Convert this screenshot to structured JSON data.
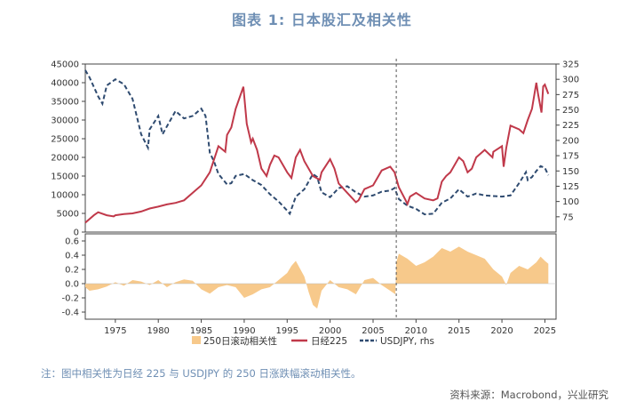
{
  "title": "图表 1:  日本股汇及相关性",
  "note": "注：图中相关性为日经 225 与 USDJPY 的 250 日涨跌幅滚动相关性。",
  "source": "资料来源：Macrobond，兴业研究",
  "colors": {
    "nikkei": "#c0394a",
    "usdjpy": "#2f4b70",
    "corr": "#f7c98b",
    "title": "#6f8fb4"
  },
  "chart_data": {
    "type": "line",
    "x_ticks": [
      1975,
      1980,
      1985,
      1990,
      1995,
      2000,
      2005,
      2010,
      2015,
      2020,
      2025
    ],
    "xlim": [
      1971.5,
      2026.3
    ],
    "marker_line_x": 2007.7,
    "top_panel": {
      "ylim_left": [
        0,
        45000
      ],
      "left_ticks": [
        0,
        5000,
        10000,
        15000,
        20000,
        25000,
        30000,
        35000,
        40000,
        45000
      ],
      "ylim_right": [
        50,
        325
      ],
      "right_ticks": [
        75,
        100,
        125,
        150,
        175,
        200,
        225,
        250,
        275,
        300,
        325
      ],
      "series": [
        {
          "name": "日经225",
          "axis": "left",
          "x": [
            1971.5,
            1972.5,
            1973,
            1974,
            1974.8,
            1975,
            1976,
            1977,
            1978,
            1979,
            1980,
            1981,
            1982,
            1983,
            1984,
            1985,
            1986,
            1987,
            1987.8,
            1988,
            1988.5,
            1989,
            1989.9,
            1990.3,
            1990.8,
            1991,
            1991.5,
            1992,
            1992.6,
            1993,
            1993.5,
            1994,
            1995,
            1995.5,
            1996,
            1996.5,
            1997,
            1998,
            1998.8,
            1999,
            2000,
            2000.5,
            2001,
            2002,
            2003,
            2003.3,
            2004,
            2005,
            2006,
            2007,
            2007.5,
            2008,
            2008.8,
            2009,
            2009.3,
            2010,
            2011,
            2012,
            2012.5,
            2013,
            2013.5,
            2014,
            2015,
            2015.5,
            2016,
            2016.5,
            2017,
            2018,
            2018.9,
            2019,
            2020,
            2020.2,
            2020.5,
            2021,
            2022,
            2022.5,
            2023,
            2023.5,
            2024,
            2024.2,
            2024.6,
            2024.8,
            2025,
            2025.4
          ],
          "y": [
            2500,
            4500,
            5300,
            4500,
            4200,
            4500,
            4800,
            5000,
            5500,
            6300,
            6800,
            7400,
            7800,
            8500,
            10500,
            12500,
            16000,
            23000,
            21500,
            26000,
            28000,
            33000,
            38900,
            29000,
            24000,
            25000,
            22000,
            17000,
            15000,
            18000,
            20500,
            20000,
            16000,
            14500,
            20000,
            22000,
            19000,
            15000,
            14000,
            16000,
            19500,
            17000,
            13000,
            10500,
            8000,
            8500,
            11500,
            12500,
            16500,
            17500,
            16000,
            12000,
            8500,
            7500,
            9500,
            10500,
            9000,
            8500,
            9000,
            13500,
            15000,
            16000,
            20000,
            19000,
            16000,
            17000,
            20000,
            22000,
            20000,
            21500,
            23000,
            17500,
            22500,
            28500,
            27500,
            26500,
            30000,
            33000,
            40000,
            37000,
            32000,
            39000,
            39500,
            37000
          ]
        },
        {
          "name": "USDJPY, rhs",
          "axis": "right",
          "x": [
            1971.5,
            1972,
            1973,
            1973.5,
            1974,
            1975,
            1976,
            1977,
            1978,
            1978.8,
            1979,
            1980,
            1980.5,
            1981,
            1982,
            1983,
            1984,
            1985,
            1985.5,
            1986,
            1986.5,
            1987,
            1988,
            1988.5,
            1989,
            1990,
            1991,
            1992,
            1993,
            1994,
            1995,
            1995.3,
            1996,
            1997,
            1998,
            1998.5,
            1999,
            2000,
            2001,
            2002,
            2003,
            2004,
            2005,
            2006,
            2007,
            2007.5,
            2008,
            2009,
            2010,
            2011,
            2012,
            2013,
            2014,
            2015,
            2016,
            2017,
            2018,
            2019,
            2020,
            2021,
            2022,
            2022.8,
            2023,
            2023.5,
            2024,
            2024.5,
            2025,
            2025.4
          ],
          "y": [
            315,
            303,
            272,
            260,
            290,
            300,
            292,
            268,
            210,
            188,
            218,
            240,
            210,
            223,
            248,
            236,
            240,
            252,
            240,
            180,
            165,
            145,
            128,
            130,
            142,
            145,
            135,
            127,
            112,
            100,
            85,
            80,
            108,
            120,
            145,
            140,
            115,
            107,
            122,
            125,
            115,
            108,
            110,
            116,
            118,
            122,
            104,
            93,
            88,
            79,
            80,
            98,
            105,
            120,
            108,
            113,
            110,
            109,
            108,
            110,
            130,
            148,
            135,
            140,
            150,
            158,
            155,
            143
          ]
        }
      ]
    },
    "bottom_panel": {
      "type": "area",
      "name": "250日滚动相关性",
      "ylim": [
        -0.5,
        0.7
      ],
      "ticks": [
        -0.4,
        -0.2,
        0.0,
        0.2,
        0.4,
        0.6
      ],
      "x": [
        1971.5,
        1972,
        1973,
        1974,
        1975,
        1976,
        1977,
        1978,
        1979,
        1980,
        1981,
        1982,
        1983,
        1984,
        1985,
        1986,
        1987,
        1988,
        1989,
        1990,
        1991,
        1992,
        1993,
        1994,
        1995,
        1995.5,
        1996,
        1997,
        1997.5,
        1998,
        1998.5,
        1999,
        2000,
        2001,
        2002,
        2003,
        2004,
        2005,
        2006,
        2007,
        2007.6,
        2007.7,
        2008,
        2009,
        2010,
        2011,
        2012,
        2013,
        2014,
        2015,
        2016,
        2017,
        2018,
        2019,
        2020,
        2020.5,
        2021,
        2022,
        2023,
        2024,
        2024.5,
        2025,
        2025.4
      ],
      "y": [
        -0.05,
        -0.1,
        -0.08,
        -0.04,
        0.02,
        -0.03,
        0.05,
        0.03,
        -0.02,
        0.05,
        -0.05,
        0.02,
        0.06,
        0.04,
        -0.08,
        -0.14,
        -0.05,
        -0.02,
        -0.05,
        -0.2,
        -0.15,
        -0.08,
        -0.05,
        0.05,
        0.15,
        0.25,
        0.32,
        0.1,
        -0.12,
        -0.3,
        -0.35,
        -0.1,
        0.05,
        -0.05,
        -0.08,
        -0.15,
        0.05,
        0.08,
        -0.02,
        -0.1,
        -0.15,
        0.3,
        0.42,
        0.35,
        0.25,
        0.3,
        0.38,
        0.5,
        0.45,
        0.52,
        0.45,
        0.4,
        0.35,
        0.2,
        0.1,
        -0.02,
        0.15,
        0.25,
        0.2,
        0.3,
        0.38,
        0.32,
        0.28
      ]
    },
    "legend": [
      "250日滚动相关性",
      "日经225",
      "USDJPY, rhs"
    ]
  }
}
